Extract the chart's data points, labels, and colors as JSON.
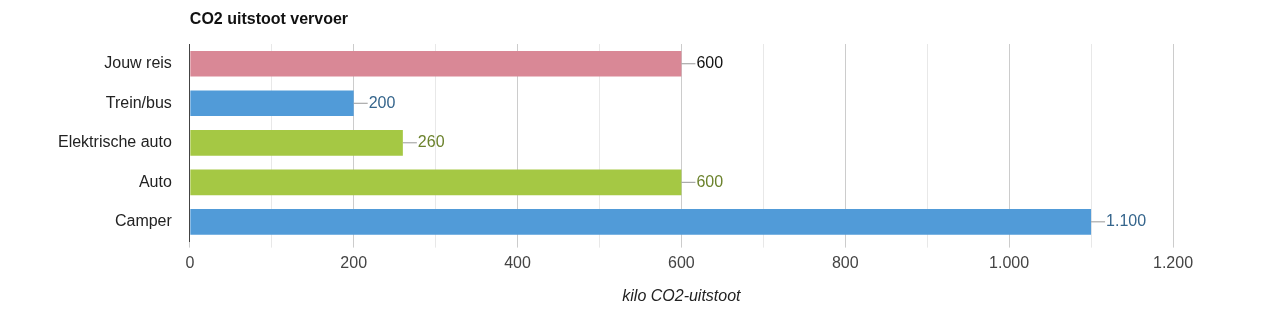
{
  "chart_data": {
    "type": "bar",
    "orientation": "horizontal",
    "title": "CO2 uitstoot vervoer",
    "xlabel": "kilo CO2-uitstoot",
    "categories": [
      "Jouw reis",
      "Trein/bus",
      "Elektrische auto",
      "Auto",
      "Camper"
    ],
    "values": [
      600,
      200,
      260,
      600,
      1100
    ],
    "colors": [
      "#d98896",
      "#519bd8",
      "#a5c844",
      "#a5c844",
      "#519bd8"
    ],
    "xlim": [
      0,
      1200
    ],
    "xticks": [
      0,
      {
        "value": 100,
        "label": null
      },
      200,
      {
        "value": 300,
        "label": null
      },
      400,
      {
        "value": 500,
        "label": null
      },
      600,
      {
        "value": 700,
        "label": null
      },
      800,
      {
        "value": 900,
        "label": null
      },
      {
        "value": 1000,
        "label": "1.000"
      },
      {
        "value": 1100,
        "label": null
      },
      {
        "value": 1200,
        "label": "1.200"
      }
    ],
    "value_labels": [
      "600",
      "200",
      "260",
      "600",
      "1.100"
    ],
    "grid": "x",
    "legend": false
  }
}
